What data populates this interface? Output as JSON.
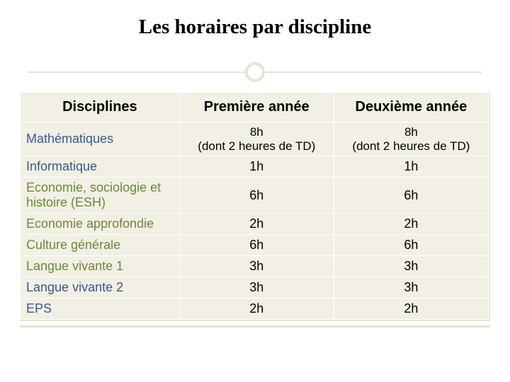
{
  "title": "Les horaires par discipline",
  "colors": {
    "slide_bg": "#ffffff",
    "panel_bg": "#f2efe4",
    "rule": "#e8e2d0",
    "cell_border": "#ffffff",
    "header_text": "#000000",
    "value_text": "#000000",
    "discipline_colors": [
      "#3a5a8c",
      "#3a5a8c",
      "#6a8a3a",
      "#6a8a3a",
      "#6a8a3a",
      "#6a8a3a",
      "#3a5a8c",
      "#3a5a8c"
    ]
  },
  "table": {
    "columns": [
      "Disciplines",
      "Première année",
      "Deuxième année"
    ],
    "rows": [
      {
        "discipline": "Mathématiques",
        "y1": "8h\n(dont 2 heures de TD)",
        "y2": "8h\n(dont 2 heures de TD)"
      },
      {
        "discipline": "Informatique",
        "y1": "1h",
        "y2": "1h"
      },
      {
        "discipline": "Economie, sociologie et histoire (ESH)",
        "y1": "6h",
        "y2": "6h"
      },
      {
        "discipline": "Economie approfondie",
        "y1": "2h",
        "y2": "2h"
      },
      {
        "discipline": "Culture générale",
        "y1": "6h",
        "y2": "6h"
      },
      {
        "discipline": "Langue vivante 1",
        "y1": "3h",
        "y2": "3h"
      },
      {
        "discipline": "Langue vivante 2",
        "y1": "3h",
        "y2": "3h"
      },
      {
        "discipline": "EPS",
        "y1": "2h",
        "y2": "2h"
      }
    ]
  },
  "typography": {
    "title_fontsize": 29,
    "title_family": "Georgia serif",
    "header_fontsize": 20,
    "cell_fontsize": 18
  }
}
